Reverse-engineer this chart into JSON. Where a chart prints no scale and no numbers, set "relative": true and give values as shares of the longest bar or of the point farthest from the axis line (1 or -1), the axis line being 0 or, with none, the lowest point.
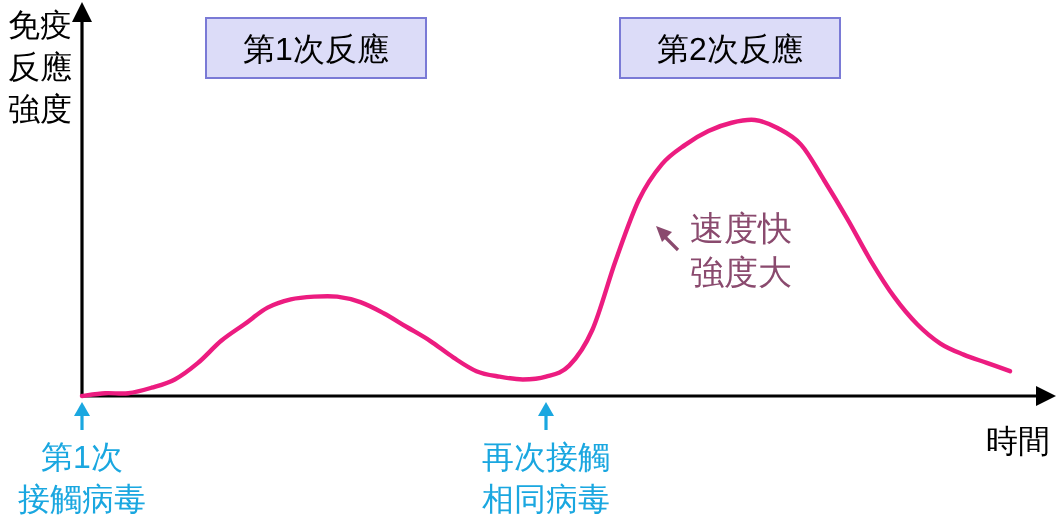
{
  "chart_data": {
    "type": "line",
    "relative": true,
    "xlabel": "時間",
    "ylabel": "免疫反應強度",
    "marker": "none",
    "line_style": "solid",
    "categories": [
      "第1次接觸病毒",
      null,
      null,
      null,
      null,
      null,
      null,
      null,
      null,
      null,
      null,
      null,
      null,
      null,
      null,
      null,
      null,
      null,
      null,
      null,
      "再次接觸相同病毒",
      null,
      null,
      null,
      null,
      null,
      null,
      null,
      null,
      null,
      null,
      null,
      null,
      null,
      null,
      null,
      null,
      null,
      null,
      null,
      null
    ],
    "series": [
      {
        "color": "#ec1c80",
        "values": [
          0,
          0.01,
          0.01,
          0.03,
          0.06,
          0.12,
          0.2,
          0.26,
          0.32,
          0.35,
          0.36,
          0.36,
          0.34,
          0.3,
          0.25,
          0.2,
          0.14,
          0.09,
          0.07,
          0.06,
          0.07,
          0.11,
          0.24,
          0.49,
          0.71,
          0.84,
          0.91,
          0.96,
          0.99,
          1,
          0.97,
          0.91,
          0.78,
          0.64,
          0.49,
          0.36,
          0.26,
          0.19,
          0.15,
          0.12,
          0.09
        ]
      }
    ],
    "annotations": [
      "第1次反應",
      "第2次反應",
      "速度快強度大"
    ]
  }
}
